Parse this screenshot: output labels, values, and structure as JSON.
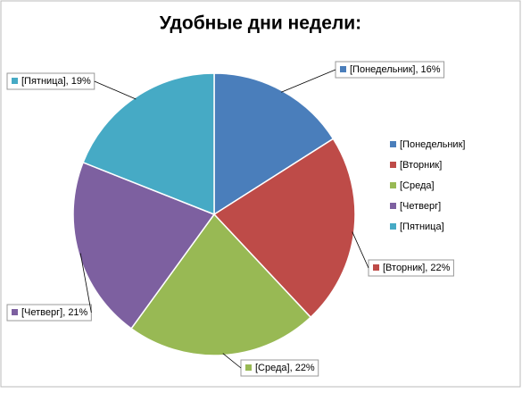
{
  "chart_data": {
    "type": "pie",
    "title": "Удобные дни недели:",
    "categories": [
      "[Понедельник]",
      "[Вторник]",
      "[Среда]",
      "[Четверг]",
      "[Пятница]"
    ],
    "values": [
      16,
      22,
      22,
      21,
      19
    ],
    "value_labels": [
      "[Понедельник], 16%",
      "[Вторник], 22%",
      "[Среда], 22%",
      "[Четверг], 21%",
      "[Пятница], 19%"
    ],
    "colors": [
      "#4a7ebb",
      "#be4b48",
      "#98b954",
      "#7d60a0",
      "#46aac5"
    ],
    "legend": "right"
  }
}
